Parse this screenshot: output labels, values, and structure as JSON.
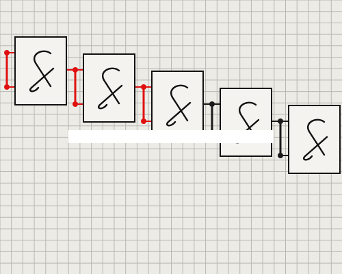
{
  "canvas": {
    "background_color": "#ecebe6",
    "grid_color": "#b8b7b3",
    "gate_symbol": "&",
    "gate_count": 5,
    "wires": [
      {
        "between": "input-to-gate-1",
        "state_color": "#e01010"
      },
      {
        "between": "gate-1-to-gate-2",
        "state_color": "#e01010"
      },
      {
        "between": "gate-2-to-gate-3",
        "state_color": "#e01010"
      },
      {
        "between": "gate-3-to-gate-4",
        "state_color": "#1a1a1a"
      },
      {
        "between": "gate-4-to-gate-5",
        "state_color": "#1a1a1a"
      }
    ],
    "gate_outline_color": "#111111",
    "gate_fill_color": "#f4f3ef",
    "overlay_bar_color": "#ffffff"
  }
}
